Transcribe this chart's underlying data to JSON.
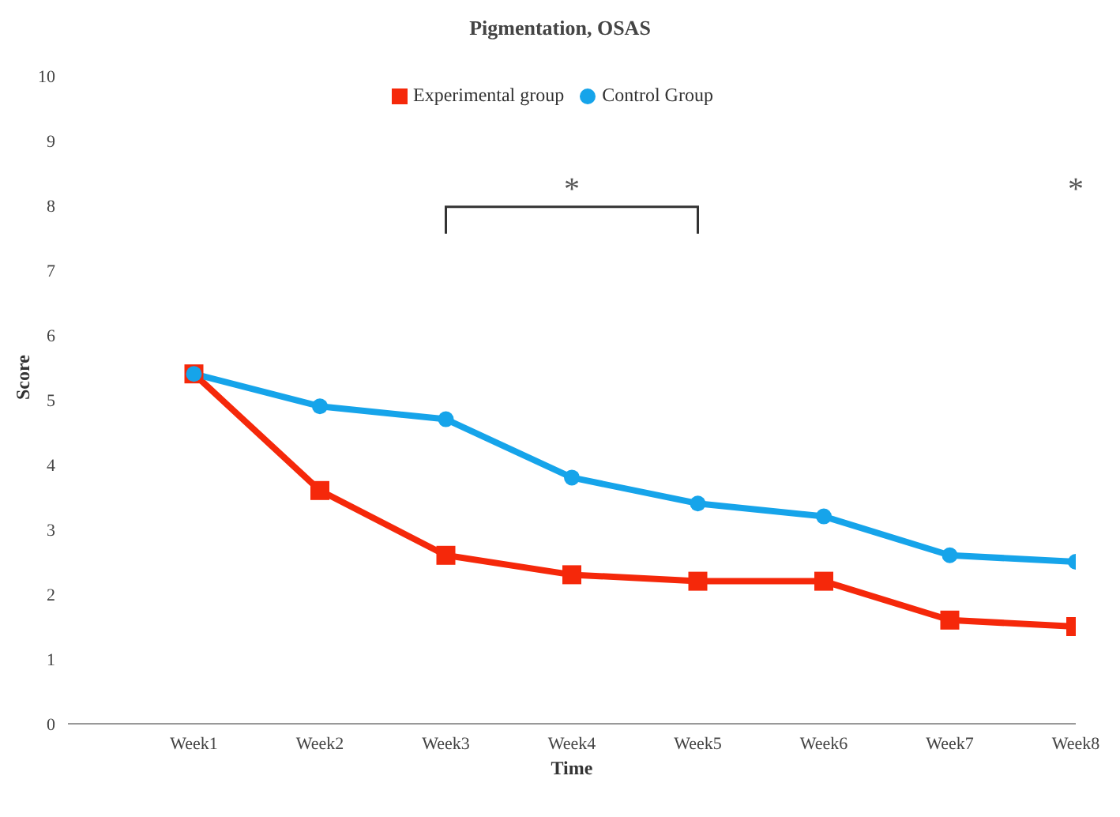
{
  "chart_data": {
    "type": "line",
    "title": "Pigmentation, OSAS",
    "xlabel": "Time",
    "ylabel": "Score",
    "categories": [
      null,
      "Week1",
      "Week2",
      "Week3",
      "Week4",
      "Week5",
      "Week6",
      "Week7",
      "Week8"
    ],
    "series": [
      {
        "name": "Experimental group",
        "color": "#f5280a",
        "marker": "square",
        "values": [
          null,
          5.4,
          3.6,
          2.6,
          2.3,
          2.2,
          2.2,
          1.6,
          1.5
        ]
      },
      {
        "name": "Control Group",
        "color": "#16a4ea",
        "marker": "circle",
        "values": [
          null,
          5.4,
          4.9,
          4.7,
          3.8,
          3.4,
          3.2,
          2.6,
          2.5
        ]
      }
    ],
    "ylim": [
      0,
      10
    ],
    "yticks": [
      0,
      1,
      2,
      3,
      4,
      5,
      6,
      7,
      8,
      9,
      10
    ],
    "grid": false,
    "legend": "top",
    "annotations": [
      "*",
      "*"
    ]
  }
}
